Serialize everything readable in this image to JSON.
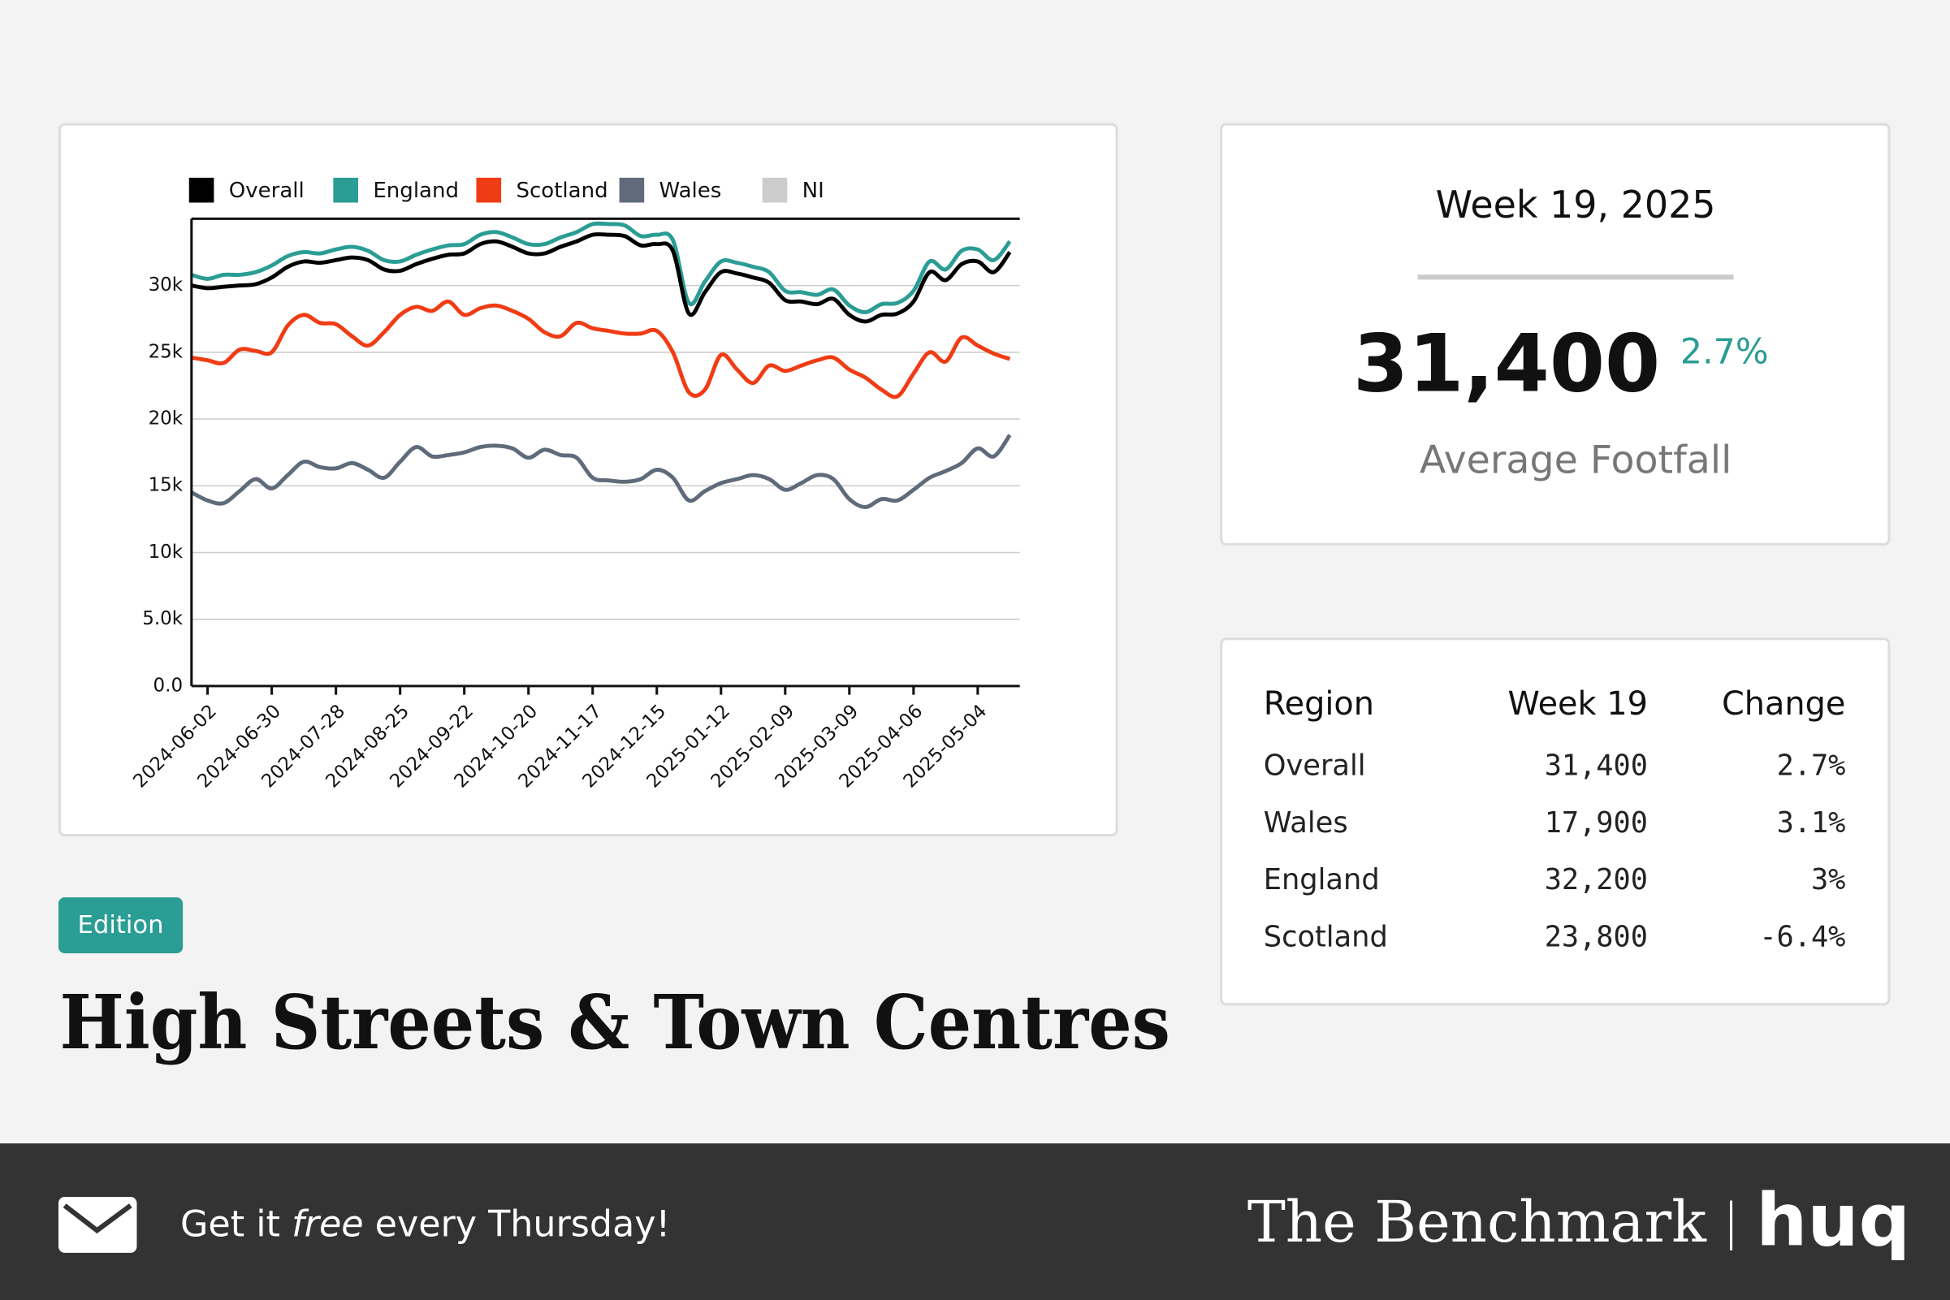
{
  "chart_data": {
    "type": "line",
    "categories": [
      null,
      "2024-06-02",
      null,
      null,
      null,
      "2024-06-30",
      null,
      null,
      null,
      "2024-07-28",
      null,
      null,
      null,
      "2024-08-25",
      null,
      null,
      null,
      "2024-09-22",
      null,
      null,
      null,
      "2024-10-20",
      null,
      null,
      null,
      "2024-11-17",
      null,
      null,
      null,
      "2024-12-15",
      null,
      null,
      null,
      "2025-01-12",
      null,
      null,
      null,
      "2025-02-09",
      null,
      null,
      null,
      "2025-03-09",
      null,
      null,
      null,
      "2025-04-06",
      null,
      null,
      null,
      "2025-05-04",
      null,
      null
    ],
    "series": [
      {
        "name": "Overall",
        "color": "#000000",
        "values": [
          30000,
          29800,
          29900,
          30000,
          30100,
          30600,
          31400,
          31800,
          31700,
          31900,
          32100,
          31900,
          31200,
          31100,
          31600,
          32000,
          32300,
          32400,
          33100,
          33300,
          32900,
          32400,
          32400,
          32900,
          33300,
          33800,
          33800,
          33700,
          33000,
          33100,
          32600,
          27900,
          29500,
          31000,
          30900,
          30600,
          30200,
          28900,
          28800,
          28600,
          29000,
          27800,
          27300,
          27800,
          27900,
          28800,
          31000,
          30400,
          31600,
          31800,
          31000,
          32500
        ]
      },
      {
        "name": "England",
        "color": "#2a9d94",
        "values": [
          30800,
          30500,
          30800,
          30800,
          31000,
          31500,
          32200,
          32500,
          32400,
          32700,
          32900,
          32600,
          31900,
          31800,
          32300,
          32700,
          33000,
          33100,
          33800,
          34000,
          33600,
          33100,
          33100,
          33600,
          34000,
          34600,
          34600,
          34500,
          33700,
          33800,
          33400,
          28700,
          30300,
          31800,
          31700,
          31400,
          31000,
          29600,
          29500,
          29300,
          29700,
          28500,
          28000,
          28600,
          28700,
          29600,
          31800,
          31200,
          32600,
          32700,
          31900,
          33300
        ]
      },
      {
        "name": "Scotland",
        "color": "#f03c14",
        "values": [
          24600,
          24400,
          24200,
          25200,
          25100,
          25000,
          27000,
          27800,
          27200,
          27100,
          26200,
          25500,
          26500,
          27800,
          28400,
          28100,
          28800,
          27800,
          28300,
          28500,
          28100,
          27500,
          26500,
          26200,
          27200,
          26800,
          26600,
          26400,
          26400,
          26600,
          25000,
          22000,
          22200,
          24800,
          23700,
          22700,
          24000,
          23600,
          24000,
          24400,
          24600,
          23700,
          23100,
          22200,
          21700,
          23400,
          25000,
          24300,
          26100,
          25500,
          24900,
          24500
        ]
      },
      {
        "name": "Wales",
        "color": "#5f6b7a",
        "values": [
          14500,
          13900,
          13700,
          14600,
          15500,
          14800,
          15800,
          16800,
          16400,
          16300,
          16700,
          16200,
          15600,
          16800,
          17900,
          17200,
          17300,
          17500,
          17900,
          18000,
          17800,
          17100,
          17700,
          17300,
          17100,
          15600,
          15400,
          15300,
          15500,
          16200,
          15600,
          13900,
          14600,
          15200,
          15500,
          15800,
          15500,
          14700,
          15200,
          15800,
          15500,
          14000,
          13400,
          14000,
          13900,
          14700,
          15600,
          16100,
          16700,
          17800,
          17200,
          18800
        ]
      },
      {
        "name": "NI",
        "color": "#cccccc",
        "values": [
          null,
          null,
          null,
          null,
          null,
          null,
          null,
          null,
          null,
          null,
          null,
          null,
          null,
          null,
          null,
          null,
          null,
          null,
          null,
          null,
          null,
          null,
          null,
          null,
          null,
          null,
          null,
          null,
          null,
          null,
          null,
          null,
          null,
          null,
          null,
          null,
          null,
          null,
          null,
          null,
          null,
          null,
          null,
          null,
          null,
          null,
          null,
          null,
          null,
          null,
          null,
          null
        ]
      }
    ],
    "ylim": [
      0,
      35000
    ],
    "yticks": [
      {
        "value": 0,
        "label": "0.0"
      },
      {
        "value": 5000,
        "label": "5.0k"
      },
      {
        "value": 10000,
        "label": "10k"
      },
      {
        "value": 15000,
        "label": "15k"
      },
      {
        "value": 20000,
        "label": "20k"
      },
      {
        "value": 25000,
        "label": "25k"
      },
      {
        "value": 30000,
        "label": "30k"
      }
    ],
    "grid": true
  },
  "summary": {
    "week": "Week 19, 2025",
    "value": "31,400",
    "change": "2.7%",
    "label": "Average Footfall"
  },
  "table": {
    "header": [
      "Region",
      "Week 19",
      "Change"
    ],
    "rows": [
      [
        "Overall",
        "31,400",
        "2.7%"
      ],
      [
        "Wales",
        "17,900",
        "3.1%"
      ],
      [
        "England",
        "32,200",
        "3%"
      ],
      [
        "Scotland",
        "23,800",
        "-6.4%"
      ]
    ]
  },
  "header": {
    "badge": "Edition",
    "title": "High Streets & Town Centres"
  },
  "footer": {
    "cta": [
      "Get it ",
      "free",
      " every Thursday!"
    ],
    "brand": "The Benchmark",
    "logo": "huq"
  }
}
